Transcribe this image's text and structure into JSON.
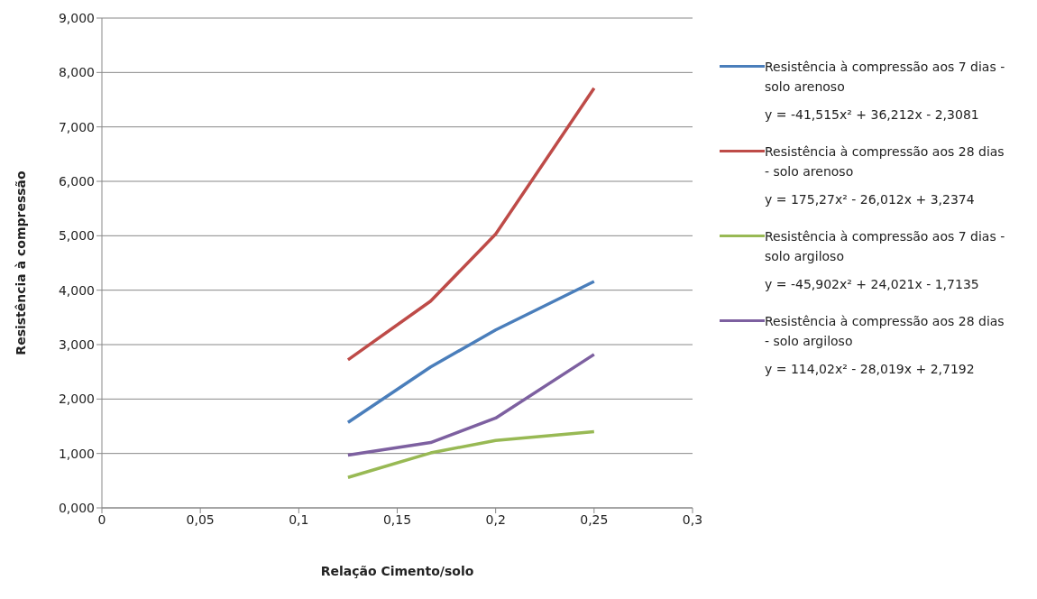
{
  "chart_data": {
    "type": "line",
    "xlabel": "Relação Cimento/solo",
    "ylabel": "Resistência à compressão",
    "x": [
      0.125,
      0.167,
      0.2,
      0.25
    ],
    "series": [
      {
        "name": "Resistência à compressão aos 7 dias - solo arenoso",
        "color": "#4a7ebb",
        "values": [
          1.57,
          2.59,
          3.27,
          4.16
        ]
      },
      {
        "name": "Resistência à compressão aos 28 dias - solo arenoso",
        "color": "#be4b48",
        "values": [
          2.72,
          3.8,
          5.03,
          7.71
        ]
      },
      {
        "name": "Resistência à compressão aos 7 dias - solo argiloso",
        "color": "#98b954",
        "values": [
          0.56,
          1.01,
          1.24,
          1.4
        ]
      },
      {
        "name": "Resistência à compressão aos 28 dias - solo argiloso",
        "color": "#7d60a0",
        "values": [
          0.97,
          1.2,
          1.65,
          2.82
        ]
      }
    ],
    "annotations": [
      "y = -41,515x² + 36,212x - 2,3081",
      "y = 175,27x² - 26,012x + 3,2374",
      "y = -45,902x² + 24,021x - 1,7135",
      "y = 114,02x² - 28,019x + 2,7192"
    ],
    "xlim": [
      0,
      0.3
    ],
    "xticks": [
      {
        "value": 0,
        "label": "0"
      },
      {
        "value": 0.05,
        "label": "0,05"
      },
      {
        "value": 0.1,
        "label": "0,1"
      },
      {
        "value": 0.15,
        "label": "0,15"
      },
      {
        "value": 0.2,
        "label": "0,2"
      },
      {
        "value": 0.25,
        "label": "0,25"
      },
      {
        "value": 0.3,
        "label": "0,3"
      }
    ],
    "ylim": [
      0,
      9
    ],
    "yticks": [
      {
        "value": 0,
        "label": "0,000"
      },
      {
        "value": 1,
        "label": "1,000"
      },
      {
        "value": 2,
        "label": "2,000"
      },
      {
        "value": 3,
        "label": "3,000"
      },
      {
        "value": 4,
        "label": "4,000"
      },
      {
        "value": 5,
        "label": "5,000"
      },
      {
        "value": 6,
        "label": "6,000"
      },
      {
        "value": 7,
        "label": "7,000"
      },
      {
        "value": 8,
        "label": "8,000"
      },
      {
        "value": 9,
        "label": "9,000"
      }
    ],
    "grid": "y",
    "legend": "right",
    "marker": "none",
    "line_style": "solid"
  }
}
